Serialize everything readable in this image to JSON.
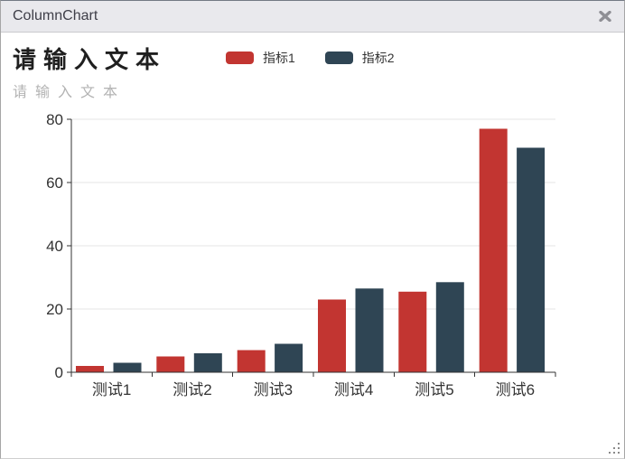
{
  "window": {
    "title": "ColumnChart",
    "close_icon": "✕",
    "resize_grip_icon": "drag-dots"
  },
  "chart_data": {
    "type": "bar",
    "title": "请输入文本",
    "subtitle": "请输入文本",
    "categories": [
      "测试1",
      "测试2",
      "测试3",
      "测试4",
      "测试5",
      "测试6"
    ],
    "series": [
      {
        "name": "指标1",
        "color": "#c23531",
        "values": [
          2,
          5,
          7,
          23,
          25.5,
          77
        ]
      },
      {
        "name": "指标2",
        "color": "#2f4554",
        "values": [
          3,
          6,
          9,
          26.5,
          28.5,
          71
        ]
      }
    ],
    "xlabel": "",
    "ylabel": "",
    "ylim": [
      0,
      80
    ],
    "yticks": [
      0,
      20,
      40,
      60,
      80
    ],
    "grid": true,
    "legend_position": "top",
    "axis_color": "#333333",
    "grid_color": "#e4e4e4",
    "label_color": "#333333"
  }
}
